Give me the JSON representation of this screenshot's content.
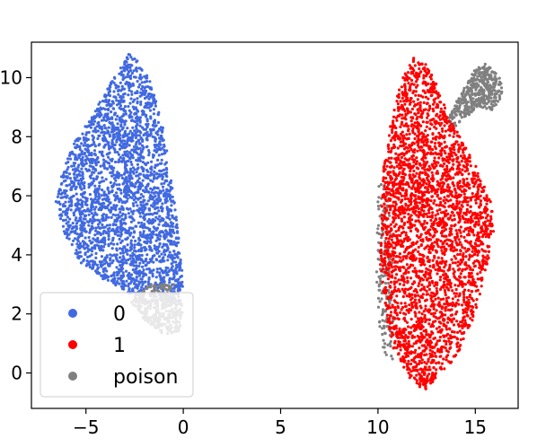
{
  "chart_data": {
    "type": "scatter",
    "title": "",
    "xlabel": "",
    "ylabel": "",
    "xlim": [
      -7.8,
      17.2
    ],
    "ylim": [
      -1.2,
      11.2
    ],
    "xticks": [
      -5,
      0,
      5,
      10,
      15
    ],
    "xtick_labels": [
      "−5",
      "0",
      "5",
      "10",
      "15"
    ],
    "yticks": [
      0,
      2,
      4,
      6,
      8,
      10
    ],
    "ytick_labels": [
      "0",
      "2",
      "4",
      "6",
      "8",
      "10"
    ],
    "grid": false,
    "legend_position": "lower-left",
    "series": [
      {
        "name": "0",
        "color": "#4169e1",
        "clusters": [
          {
            "shape": "blob",
            "approx_count": 2600,
            "outline": [
              [
                -2.8,
                10.8
              ],
              [
                -2.2,
                10.5
              ],
              [
                -1.5,
                9.6
              ],
              [
                -1.0,
                8.2
              ],
              [
                -0.6,
                6.5
              ],
              [
                -0.2,
                4.5
              ],
              [
                0.0,
                3.0
              ],
              [
                -0.2,
                2.3
              ],
              [
                -1.4,
                2.6
              ],
              [
                -2.8,
                2.7
              ],
              [
                -4.2,
                3.2
              ],
              [
                -5.4,
                3.8
              ],
              [
                -6.2,
                4.8
              ],
              [
                -6.6,
                5.8
              ],
              [
                -6.2,
                6.8
              ],
              [
                -5.6,
                7.8
              ],
              [
                -4.6,
                8.8
              ],
              [
                -3.6,
                10.0
              ]
            ]
          }
        ]
      },
      {
        "name": "1",
        "color": "#ff0000",
        "clusters": [
          {
            "shape": "blob",
            "approx_count": 3000,
            "outline": [
              [
                11.8,
                10.7
              ],
              [
                12.6,
                10.4
              ],
              [
                13.0,
                9.8
              ],
              [
                13.6,
                8.8
              ],
              [
                14.3,
                7.9
              ],
              [
                15.2,
                6.8
              ],
              [
                15.8,
                5.8
              ],
              [
                16.0,
                4.8
              ],
              [
                15.5,
                3.3
              ],
              [
                14.9,
                1.8
              ],
              [
                14.3,
                0.9
              ],
              [
                13.6,
                0.2
              ],
              [
                12.4,
                -0.6
              ],
              [
                11.6,
                -0.2
              ],
              [
                10.8,
                0.8
              ],
              [
                10.4,
                2.0
              ],
              [
                10.1,
                3.8
              ],
              [
                10.2,
                5.6
              ],
              [
                10.3,
                7.0
              ],
              [
                10.7,
                8.6
              ],
              [
                11.2,
                9.9
              ]
            ]
          }
        ]
      },
      {
        "name": "poison",
        "color": "#808080",
        "clusters": [
          {
            "shape": "hook",
            "approx_count": 420,
            "outline": [
              [
                15.5,
                10.5
              ],
              [
                16.3,
                10.0
              ],
              [
                16.4,
                9.4
              ],
              [
                15.9,
                8.9
              ],
              [
                15.2,
                9.0
              ],
              [
                14.4,
                8.6
              ],
              [
                13.8,
                8.2
              ],
              [
                13.5,
                8.6
              ],
              [
                14.2,
                9.4
              ],
              [
                15.0,
                10.3
              ]
            ]
          },
          {
            "shape": "blob",
            "approx_count": 350,
            "outline": [
              [
                -1.6,
                3.0
              ],
              [
                -0.4,
                3.0
              ],
              [
                0.0,
                2.2
              ],
              [
                -0.2,
                1.4
              ],
              [
                -1.0,
                1.3
              ],
              [
                -2.0,
                1.8
              ],
              [
                -2.8,
                2.5
              ]
            ]
          },
          {
            "shape": "scatter-edge",
            "approx_count": 160,
            "outline": [
              [
                10.0,
                6.4
              ],
              [
                10.5,
                6.4
              ],
              [
                10.8,
                3.0
              ],
              [
                10.8,
                0.3
              ],
              [
                10.2,
                0.8
              ],
              [
                9.9,
                3.0
              ]
            ]
          }
        ]
      }
    ],
    "legend": [
      {
        "label": "0",
        "color": "#4169e1"
      },
      {
        "label": "1",
        "color": "#ff0000"
      },
      {
        "label": "poison",
        "color": "#808080"
      }
    ]
  }
}
